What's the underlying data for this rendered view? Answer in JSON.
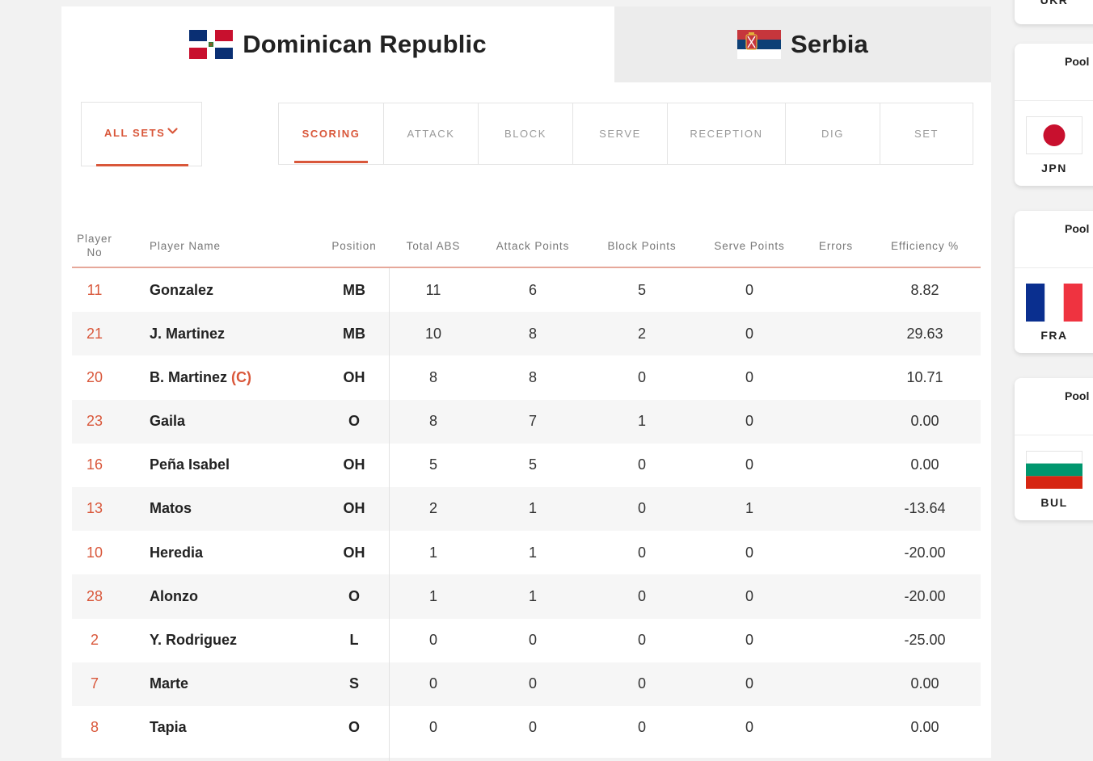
{
  "teams": [
    {
      "name": "Dominican Republic",
      "active": true
    },
    {
      "name": "Serbia",
      "active": false
    }
  ],
  "sets_filter": {
    "label": "ALL SETS"
  },
  "stat_tabs": [
    "SCORING",
    "ATTACK",
    "BLOCK",
    "SERVE",
    "RECEPTION",
    "DIG",
    "SET"
  ],
  "active_stat_tab": "SCORING",
  "columns": {
    "player_no": "Player No",
    "player_name": "Player Name",
    "position": "Position",
    "total_abs": "Total ABS",
    "attack_points": "Attack Points",
    "block_points": "Block Points",
    "serve_points": "Serve Points",
    "errors": "Errors",
    "efficiency": "Efficiency %"
  },
  "players": [
    {
      "no": "11",
      "name": "Gonzalez",
      "captain": "",
      "position": "MB",
      "total_abs": "11",
      "attack": "6",
      "block": "5",
      "serve": "0",
      "errors": "",
      "eff": "8.82"
    },
    {
      "no": "21",
      "name": "J. Martinez",
      "captain": "",
      "position": "MB",
      "total_abs": "10",
      "attack": "8",
      "block": "2",
      "serve": "0",
      "errors": "",
      "eff": "29.63"
    },
    {
      "no": "20",
      "name": "B. Martinez",
      "captain": "(C)",
      "position": "OH",
      "total_abs": "8",
      "attack": "8",
      "block": "0",
      "serve": "0",
      "errors": "",
      "eff": "10.71"
    },
    {
      "no": "23",
      "name": "Gaila",
      "captain": "",
      "position": "O",
      "total_abs": "8",
      "attack": "7",
      "block": "1",
      "serve": "0",
      "errors": "",
      "eff": "0.00"
    },
    {
      "no": "16",
      "name": "Peña Isabel",
      "captain": "",
      "position": "OH",
      "total_abs": "5",
      "attack": "5",
      "block": "0",
      "serve": "0",
      "errors": "",
      "eff": "0.00"
    },
    {
      "no": "13",
      "name": "Matos",
      "captain": "",
      "position": "OH",
      "total_abs": "2",
      "attack": "1",
      "block": "0",
      "serve": "1",
      "errors": "",
      "eff": "-13.64"
    },
    {
      "no": "10",
      "name": "Heredia",
      "captain": "",
      "position": "OH",
      "total_abs": "1",
      "attack": "1",
      "block": "0",
      "serve": "0",
      "errors": "",
      "eff": "-20.00"
    },
    {
      "no": "28",
      "name": "Alonzo",
      "captain": "",
      "position": "O",
      "total_abs": "1",
      "attack": "1",
      "block": "0",
      "serve": "0",
      "errors": "",
      "eff": "-20.00"
    },
    {
      "no": "2",
      "name": "Y. Rodriguez",
      "captain": "",
      "position": "L",
      "total_abs": "0",
      "attack": "0",
      "block": "0",
      "serve": "0",
      "errors": "",
      "eff": "-25.00"
    },
    {
      "no": "7",
      "name": "Marte",
      "captain": "",
      "position": "S",
      "total_abs": "0",
      "attack": "0",
      "block": "0",
      "serve": "0",
      "errors": "",
      "eff": "0.00"
    },
    {
      "no": "8",
      "name": "Tapia",
      "captain": "",
      "position": "O",
      "total_abs": "0",
      "attack": "0",
      "block": "0",
      "serve": "0",
      "errors": "",
      "eff": "0.00"
    }
  ],
  "side_cards": [
    {
      "label": "",
      "code": "UKR"
    },
    {
      "label": "Pool",
      "code": "JPN"
    },
    {
      "label": "Pool",
      "code": "FRA"
    },
    {
      "label": "Pool",
      "code": "BUL"
    }
  ],
  "colors": {
    "accent": "#d9573a",
    "inactive_tab_bg": "#ececec",
    "row_shade": "#f6f6f6"
  },
  "icons": {
    "sets_dropdown": "chevron-down-icon",
    "team_flags": [
      "dominican-republic-flag-icon",
      "serbia-flag-icon"
    ],
    "side_flags": [
      "japan-flag-icon",
      "france-flag-icon",
      "bulgaria-flag-icon"
    ]
  }
}
